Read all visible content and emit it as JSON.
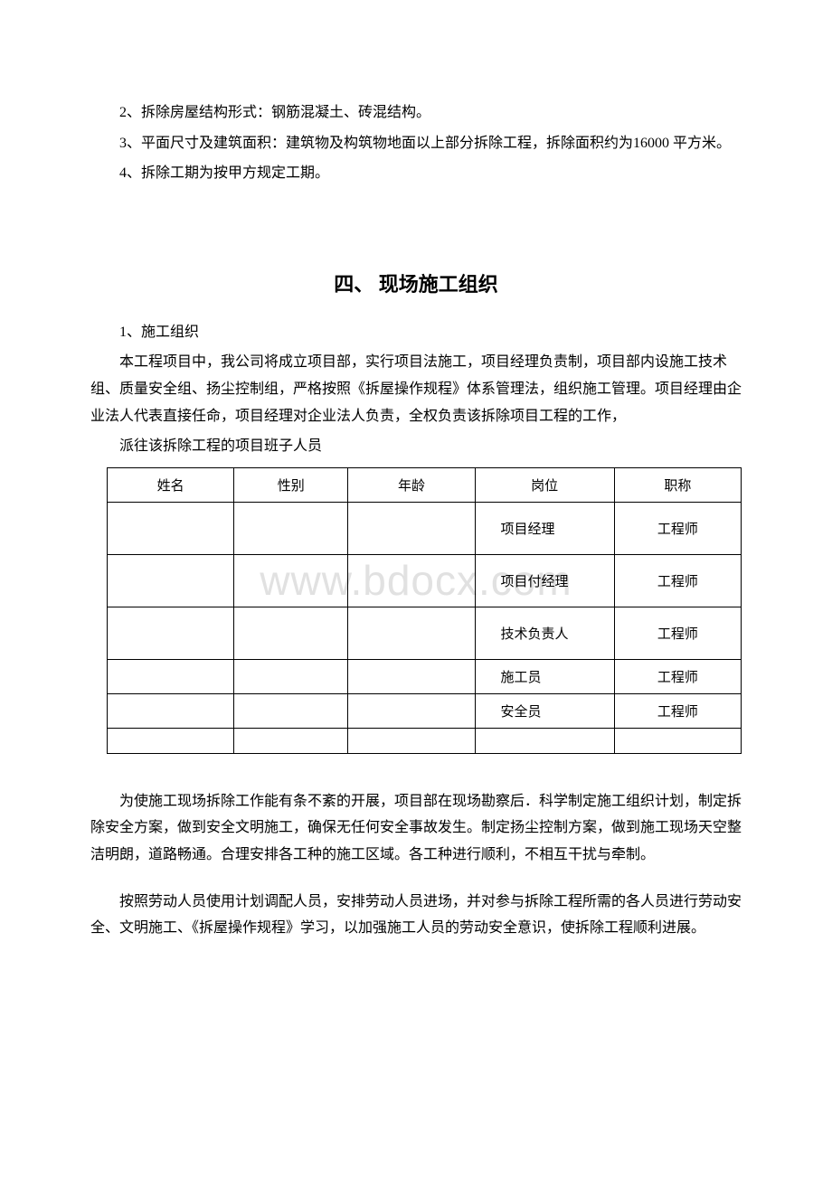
{
  "watermark_text": "www.bdocx.com",
  "paragraphs_top": [
    "2、拆除房屋结构形式：钢筋混凝土、砖混结构。",
    "3、平面尺寸及建筑面积：建筑物及构筑物地面以上部分拆除工程，拆除面积约为16000 平方米。",
    "4、拆除工期为按甲方规定工期。"
  ],
  "section_heading": "四、 现场施工组织",
  "paragraphs_mid": [
    "1、施工组织",
    "本工程项目中，我公司将成立项目部，实行项目法施工，项目经理负责制，项目部内设施工技术组、质量安全组、扬尘控制组，严格按照《拆屋操作规程》体系管理法，组织施工管理。项目经理由企业法人代表直接任命，项目经理对企业法人负责，全权负责该拆除项目工程的工作，",
    "派往该拆除工程的项目班子人员"
  ],
  "table": {
    "columns": [
      "姓名",
      "性别",
      "年龄",
      "岗位",
      "职称"
    ],
    "col_widths": [
      "20%",
      "18%",
      "20%",
      "22%",
      "20%"
    ],
    "rows": [
      {
        "name": "",
        "gender": "",
        "age": "",
        "role": "项目经理",
        "title": "工程师",
        "tall": true
      },
      {
        "name": "",
        "gender": "",
        "age": "",
        "role": "项目付经理",
        "title": "工程师",
        "tall": true
      },
      {
        "name": "",
        "gender": "",
        "age": "",
        "role": "技术负责人",
        "title": "工程师",
        "tall": true
      },
      {
        "name": "",
        "gender": "",
        "age": "",
        "role": "施工员",
        "title": "工程师",
        "tall": false
      },
      {
        "name": "",
        "gender": "",
        "age": "",
        "role": "安全员",
        "title": "工程师",
        "tall": false
      }
    ]
  },
  "paragraphs_bottom": [
    "为使施工现场拆除工作能有条不紊的开展，项目部在现场勘察后．科学制定施工组织计划，制定拆除安全方案，做到安全文明施工，确保无任何安全事故发生。制定扬尘控制方案，做到施工现场天空整洁明朗，道路畅通。合理安排各工种的施工区域。各工种进行顺利，不相互干扰与牵制。",
    "按照劳动人员使用计划调配人员，安排劳动人员进场，并对参与拆除工程所需的各人员进行劳动安全、文明施工、《拆屋操作规程》学习，以加强施工人员的劳动安全意识，使拆除工程顺利进展。"
  ]
}
